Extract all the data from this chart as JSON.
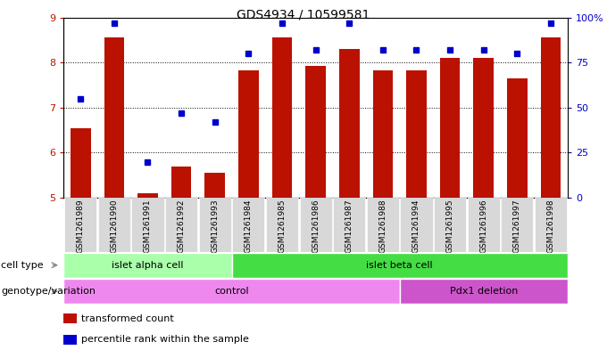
{
  "title": "GDS4934 / 10599581",
  "samples": [
    "GSM1261989",
    "GSM1261990",
    "GSM1261991",
    "GSM1261992",
    "GSM1261993",
    "GSM1261984",
    "GSM1261985",
    "GSM1261986",
    "GSM1261987",
    "GSM1261988",
    "GSM1261994",
    "GSM1261995",
    "GSM1261996",
    "GSM1261997",
    "GSM1261998"
  ],
  "bar_values": [
    6.55,
    8.55,
    5.1,
    5.7,
    5.55,
    7.82,
    8.55,
    7.92,
    8.3,
    7.82,
    7.82,
    8.1,
    8.1,
    7.65,
    8.55
  ],
  "dot_percentile": [
    55,
    97,
    20,
    47,
    42,
    80,
    97,
    82,
    97,
    82,
    82,
    82,
    82,
    80,
    97
  ],
  "ylim_left": [
    5,
    9
  ],
  "ylim_right": [
    0,
    100
  ],
  "yticks_left": [
    5,
    6,
    7,
    8,
    9
  ],
  "yticks_right": [
    0,
    25,
    50,
    75,
    100
  ],
  "bar_color": "#bb1100",
  "dot_color": "#0000cc",
  "cell_type_groups": [
    {
      "label": "islet alpha cell",
      "start": 0,
      "end": 5,
      "color": "#aaffaa"
    },
    {
      "label": "islet beta cell",
      "start": 5,
      "end": 15,
      "color": "#44dd44"
    }
  ],
  "genotype_groups": [
    {
      "label": "control",
      "start": 0,
      "end": 10,
      "color": "#ee88ee"
    },
    {
      "label": "Pdx1 deletion",
      "start": 10,
      "end": 15,
      "color": "#cc55cc"
    }
  ],
  "legend_items": [
    {
      "color": "#bb1100",
      "label": "transformed count"
    },
    {
      "color": "#0000cc",
      "label": "percentile rank within the sample"
    }
  ]
}
